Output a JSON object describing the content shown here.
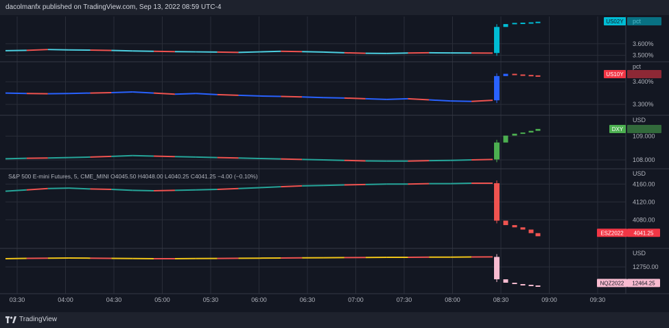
{
  "header": {
    "publisher": "dacolmanfx published on TradingView.com, Sep 13, 2022 08:59 UTC-4"
  },
  "footer": {
    "brand": "TradingView",
    "logo_icon": "tradingview-logo-icon"
  },
  "colors": {
    "bg": "#131722",
    "grid": "#2a2e39",
    "up": "#26a69a",
    "down": "#ef5350"
  },
  "chart_data": {
    "type": "line",
    "x_ticks": [
      "03:30",
      "04:00",
      "04:30",
      "05:00",
      "05:30",
      "06:00",
      "06:30",
      "07:00",
      "07:30",
      "08:00",
      "08:30",
      "09:00",
      "09:30"
    ],
    "panes": [
      {
        "tag": "US02Y",
        "tag_color": "#00bcd4",
        "tag_text": "#131722",
        "unit": "pct",
        "ticks": [
          {
            "label": "3.600%",
            "v": 3.6
          },
          {
            "label": "3.500%",
            "v": 3.5
          }
        ],
        "ylim": [
          3.48,
          3.8
        ],
        "line_color": "#4dd0e1",
        "pre": [
          3.54,
          3.543,
          3.55,
          3.547,
          3.545,
          3.542,
          3.538,
          3.535,
          3.532,
          3.53,
          3.528,
          3.525,
          3.53,
          3.535,
          3.532,
          3.528,
          3.522,
          3.518,
          3.516,
          3.52,
          3.522,
          3.521,
          3.52,
          3.519
        ],
        "spike": [
          3.52,
          3.745,
          3.77,
          3.78,
          3.782,
          3.785,
          3.79
        ]
      },
      {
        "tag": "US10Y",
        "tag_color": "#f23645",
        "tag_text": "#ffffff",
        "unit": "pct",
        "ticks": [
          {
            "label": "3.400%",
            "v": 3.4
          },
          {
            "label": "3.300%",
            "v": 3.3
          }
        ],
        "ylim": [
          3.27,
          3.47
        ],
        "line_color": "#2962ff",
        "pre": [
          3.35,
          3.348,
          3.347,
          3.348,
          3.35,
          3.352,
          3.355,
          3.35,
          3.345,
          3.348,
          3.343,
          3.34,
          3.337,
          3.335,
          3.333,
          3.33,
          3.328,
          3.325,
          3.322,
          3.325,
          3.32,
          3.315,
          3.313,
          3.318
        ],
        "spike": [
          3.318,
          3.425,
          3.435,
          3.432,
          3.43,
          3.428,
          3.425
        ]
      },
      {
        "tag": "DXY",
        "tag_color": "#4caf50",
        "tag_text": "#ffffff",
        "unit": "USD",
        "ticks": [
          {
            "label": "109.000",
            "v": 109
          },
          {
            "label": "108.000",
            "v": 108
          }
        ],
        "ylim": [
          107.8,
          109.7
        ],
        "line_color": "#26a69a",
        "pre": [
          108.05,
          108.07,
          108.08,
          108.1,
          108.12,
          108.15,
          108.18,
          108.16,
          108.14,
          108.12,
          108.1,
          108.08,
          108.06,
          108.04,
          108.02,
          108,
          107.98,
          107.96,
          107.95,
          107.95,
          107.97,
          107.98,
          108,
          108.02
        ],
        "spike": [
          108.02,
          108.73,
          109.02,
          109.1,
          109.15,
          109.22,
          109.3
        ]
      },
      {
        "tag": "ESZ2022",
        "tag_color": "#f23645",
        "tag_text": "#ffffff",
        "unit": "USD",
        "price_label": "4041.25",
        "legend": "S&P 500 E-mini Futures, 5, CME_MINI O4045.50 H4048.00 L4040.25 C4041.25 −4.00 (−0.10%)",
        "ticks": [
          {
            "label": "4160.00",
            "v": 4160
          },
          {
            "label": "4120.00",
            "v": 4120
          },
          {
            "label": "4080.00",
            "v": 4080
          }
        ],
        "ylim": [
          4025,
          4185
        ],
        "line_color": "#26a69a",
        "pre": [
          4144,
          4147,
          4150,
          4151,
          4149,
          4148,
          4146,
          4145,
          4146,
          4147,
          4148,
          4150,
          4152,
          4154,
          4156,
          4157,
          4158,
          4159,
          4160,
          4160,
          4161,
          4161,
          4162,
          4162
        ],
        "spike": [
          4162,
          4078,
          4068,
          4063,
          4058,
          4050,
          4043
        ]
      },
      {
        "tag": "NQZ2022",
        "tag_color": "#f8bbd0",
        "tag_text": "#131722",
        "unit": "USD",
        "price_label": "12464.25",
        "ticks": [
          {
            "label": "12750.00",
            "v": 12750
          }
        ],
        "ylim": [
          12420,
          12960
        ],
        "line_color": "#f0c419",
        "pre": [
          12870,
          12875,
          12878,
          12880,
          12878,
          12875,
          12872,
          12870,
          12870,
          12872,
          12874,
          12876,
          12878,
          12880,
          12882,
          12884,
          12886,
          12888,
          12890,
          12890,
          12892,
          12893,
          12895,
          12896
        ],
        "spike": [
          12896,
          12570,
          12520,
          12500,
          12490,
          12480,
          12466
        ]
      }
    ]
  }
}
